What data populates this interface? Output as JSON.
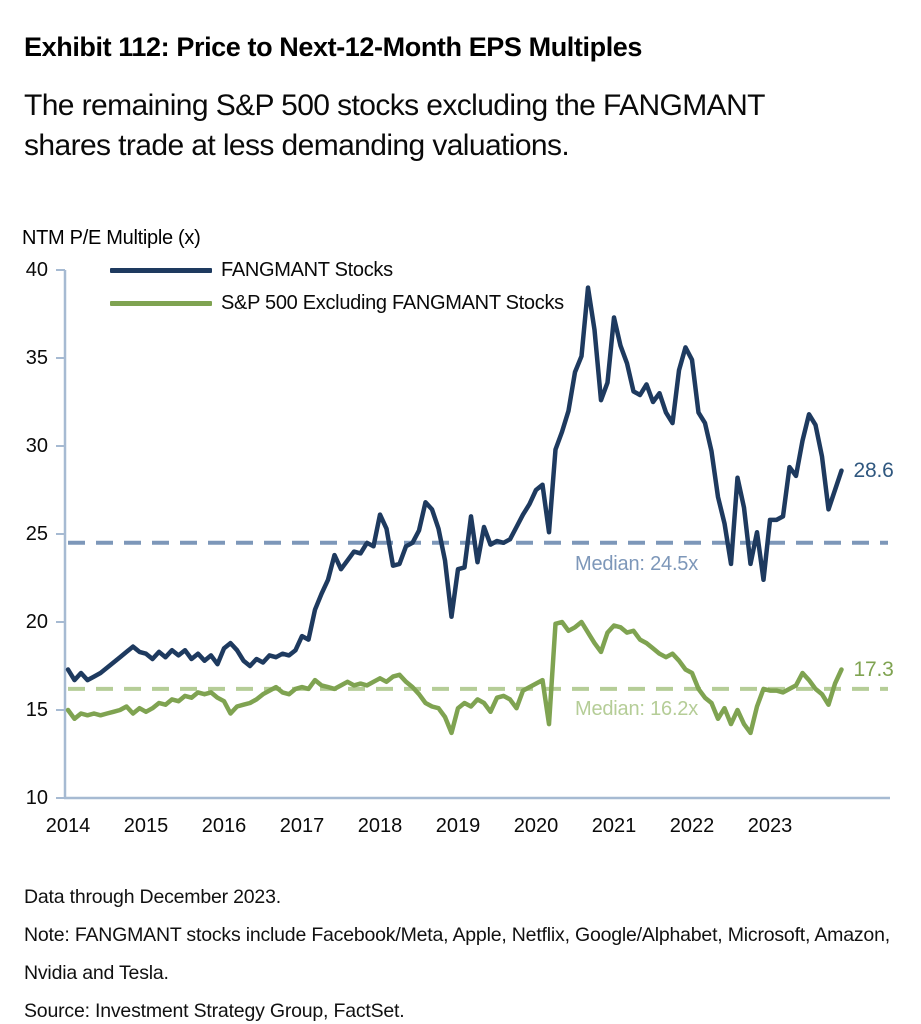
{
  "header": {
    "title": "Exhibit 112: Price to Next-12-Month EPS Multiples",
    "subtitle": "The remaining S&P 500 stocks excluding the FANGMANT shares trade at less demanding valuations."
  },
  "chart_data": {
    "type": "line",
    "title": "NTM P/E Multiple (x)",
    "ylabel": "NTM P/E Multiple (x)",
    "xlabel": "",
    "ylim": [
      10,
      40
    ],
    "y_ticks": [
      40,
      35,
      30,
      25,
      20,
      15,
      10
    ],
    "x_ticks": [
      2014,
      2015,
      2016,
      2017,
      2018,
      2019,
      2020,
      2021,
      2022,
      2023
    ],
    "x_start_year": 2014,
    "cadence": "monthly",
    "grid": false,
    "legend_position": "top-left-inside",
    "colors": {
      "axis": "#a6bad2",
      "fangmant_line": "#1e3a5f",
      "sp500ex_line": "#7fa351",
      "fangmant_median_dash": "#7d97b9",
      "sp500ex_median_dash": "#b5cd97"
    },
    "series": [
      {
        "name": "FANGMANT Stocks",
        "color": "#1e3a5f",
        "median": 24.5,
        "median_label": "Median: 24.5x",
        "end_label": "28.6",
        "values": [
          17.3,
          16.7,
          17.1,
          16.7,
          16.9,
          17.1,
          17.4,
          17.7,
          18.0,
          18.3,
          18.6,
          18.3,
          18.2,
          17.9,
          18.3,
          18.0,
          18.4,
          18.1,
          18.4,
          17.9,
          18.2,
          17.8,
          18.1,
          17.6,
          18.5,
          18.8,
          18.4,
          17.8,
          17.5,
          17.9,
          17.7,
          18.1,
          18.0,
          18.2,
          18.1,
          18.4,
          19.2,
          19.0,
          20.7,
          21.6,
          22.4,
          23.8,
          23.0,
          23.5,
          24.0,
          23.9,
          24.5,
          24.3,
          26.1,
          25.3,
          23.2,
          23.3,
          24.3,
          24.5,
          25.2,
          26.8,
          26.4,
          25.3,
          23.5,
          20.3,
          23.0,
          23.1,
          26.0,
          23.4,
          25.4,
          24.4,
          24.6,
          24.5,
          24.7,
          25.4,
          26.1,
          26.7,
          27.5,
          27.8,
          25.1,
          29.8,
          30.8,
          32.0,
          34.2,
          35.1,
          39.0,
          36.6,
          32.6,
          33.6,
          37.3,
          35.7,
          34.7,
          33.1,
          32.9,
          33.5,
          32.5,
          33.0,
          31.9,
          31.3,
          34.3,
          35.6,
          34.9,
          31.9,
          31.3,
          29.7,
          27.1,
          25.6,
          23.3,
          28.2,
          26.5,
          23.3,
          25.1,
          22.4,
          25.8,
          25.8,
          26.0,
          28.8,
          28.3,
          30.3,
          31.8,
          31.2,
          29.4,
          26.4,
          27.5,
          28.6
        ]
      },
      {
        "name": "S&P 500 Excluding FANGMANT Stocks",
        "color": "#7fa351",
        "median": 16.2,
        "median_label": "Median: 16.2x",
        "end_label": "17.3",
        "values": [
          15.0,
          14.5,
          14.8,
          14.7,
          14.8,
          14.7,
          14.8,
          14.9,
          15.0,
          15.2,
          14.8,
          15.1,
          14.9,
          15.1,
          15.4,
          15.3,
          15.6,
          15.5,
          15.8,
          15.7,
          16.0,
          15.9,
          16.0,
          15.7,
          15.5,
          14.8,
          15.2,
          15.3,
          15.4,
          15.6,
          15.9,
          16.1,
          16.3,
          16.0,
          15.9,
          16.2,
          16.3,
          16.2,
          16.7,
          16.4,
          16.3,
          16.2,
          16.4,
          16.6,
          16.4,
          16.5,
          16.4,
          16.6,
          16.8,
          16.6,
          16.9,
          17.0,
          16.6,
          16.3,
          15.9,
          15.4,
          15.2,
          15.1,
          14.6,
          13.7,
          15.1,
          15.4,
          15.2,
          15.6,
          15.4,
          14.9,
          15.7,
          15.8,
          15.6,
          15.1,
          16.1,
          16.3,
          16.5,
          16.7,
          14.2,
          19.9,
          20.0,
          19.5,
          19.7,
          20.0,
          19.4,
          18.8,
          18.3,
          19.4,
          19.8,
          19.7,
          19.4,
          19.5,
          19.0,
          18.8,
          18.5,
          18.2,
          18.0,
          18.2,
          17.8,
          17.3,
          17.1,
          16.2,
          15.7,
          15.4,
          14.5,
          15.1,
          14.2,
          15.0,
          14.2,
          13.7,
          15.2,
          16.2,
          16.1,
          16.1,
          16.0,
          16.2,
          16.4,
          17.1,
          16.7,
          16.2,
          15.9,
          15.3,
          16.5,
          17.3
        ]
      }
    ]
  },
  "footer": {
    "data_through": "Data through December 2023.",
    "note": "Note: FANGMANT stocks include Facebook/Meta, Apple, Netflix, Google/Alphabet, Microsoft, Amazon, Nvidia and Tesla.",
    "source": "Source: Investment Strategy Group, FactSet."
  }
}
